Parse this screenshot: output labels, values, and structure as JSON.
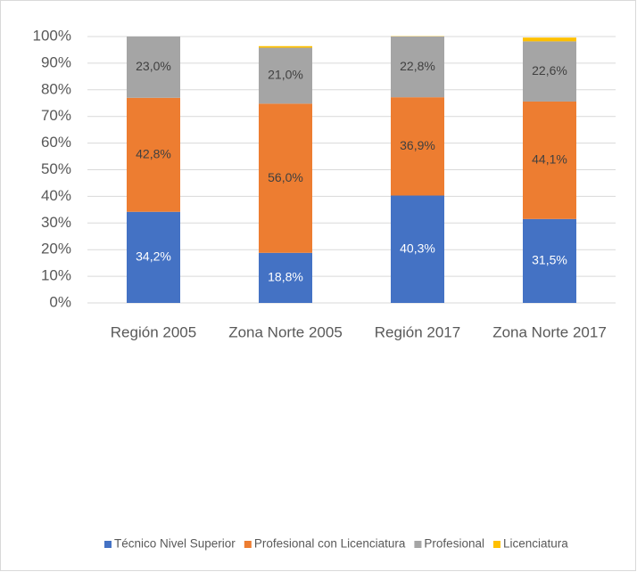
{
  "chart_data": {
    "type": "stacked_bar",
    "categories": [
      "Región 2005",
      "Zona Norte 2005",
      "Región 2017",
      "Zona Norte 2017"
    ],
    "series": [
      {
        "name": "Técnico Nivel Superior",
        "color": "#4472c4",
        "values": [
          34.2,
          18.8,
          40.3,
          31.5
        ],
        "value_labels": [
          "34,2%",
          "18,8%",
          "40,3%",
          "31,5%"
        ]
      },
      {
        "name": "Profesional con Licenciatura",
        "color": "#ed7d31",
        "values": [
          42.8,
          56.0,
          36.9,
          44.1
        ],
        "value_labels": [
          "42,8%",
          "56,0%",
          "36,9%",
          "44,1%"
        ]
      },
      {
        "name": "Profesional",
        "color": "#a5a5a5",
        "values": [
          23.0,
          21.0,
          22.8,
          22.6
        ],
        "value_labels": [
          "23,0%",
          "21,0%",
          "22,8%",
          "22,6%"
        ]
      },
      {
        "name": "Licenciatura",
        "color": "#ffc000",
        "values": [
          0,
          0.6,
          0.1,
          1.4
        ]
      }
    ],
    "ylim": [
      0,
      100
    ],
    "yticks": [
      {
        "value": 0,
        "label": "0%"
      },
      {
        "value": 10,
        "label": "10%"
      },
      {
        "value": 20,
        "label": "20%"
      },
      {
        "value": 30,
        "label": "30%"
      },
      {
        "value": 40,
        "label": "40%"
      },
      {
        "value": 50,
        "label": "50%"
      },
      {
        "value": 60,
        "label": "60%"
      },
      {
        "value": 70,
        "label": "70%"
      },
      {
        "value": 80,
        "label": "80%"
      },
      {
        "value": 90,
        "label": "90%"
      },
      {
        "value": 100,
        "label": "100%"
      }
    ],
    "grid": true,
    "legend": "bottom"
  }
}
